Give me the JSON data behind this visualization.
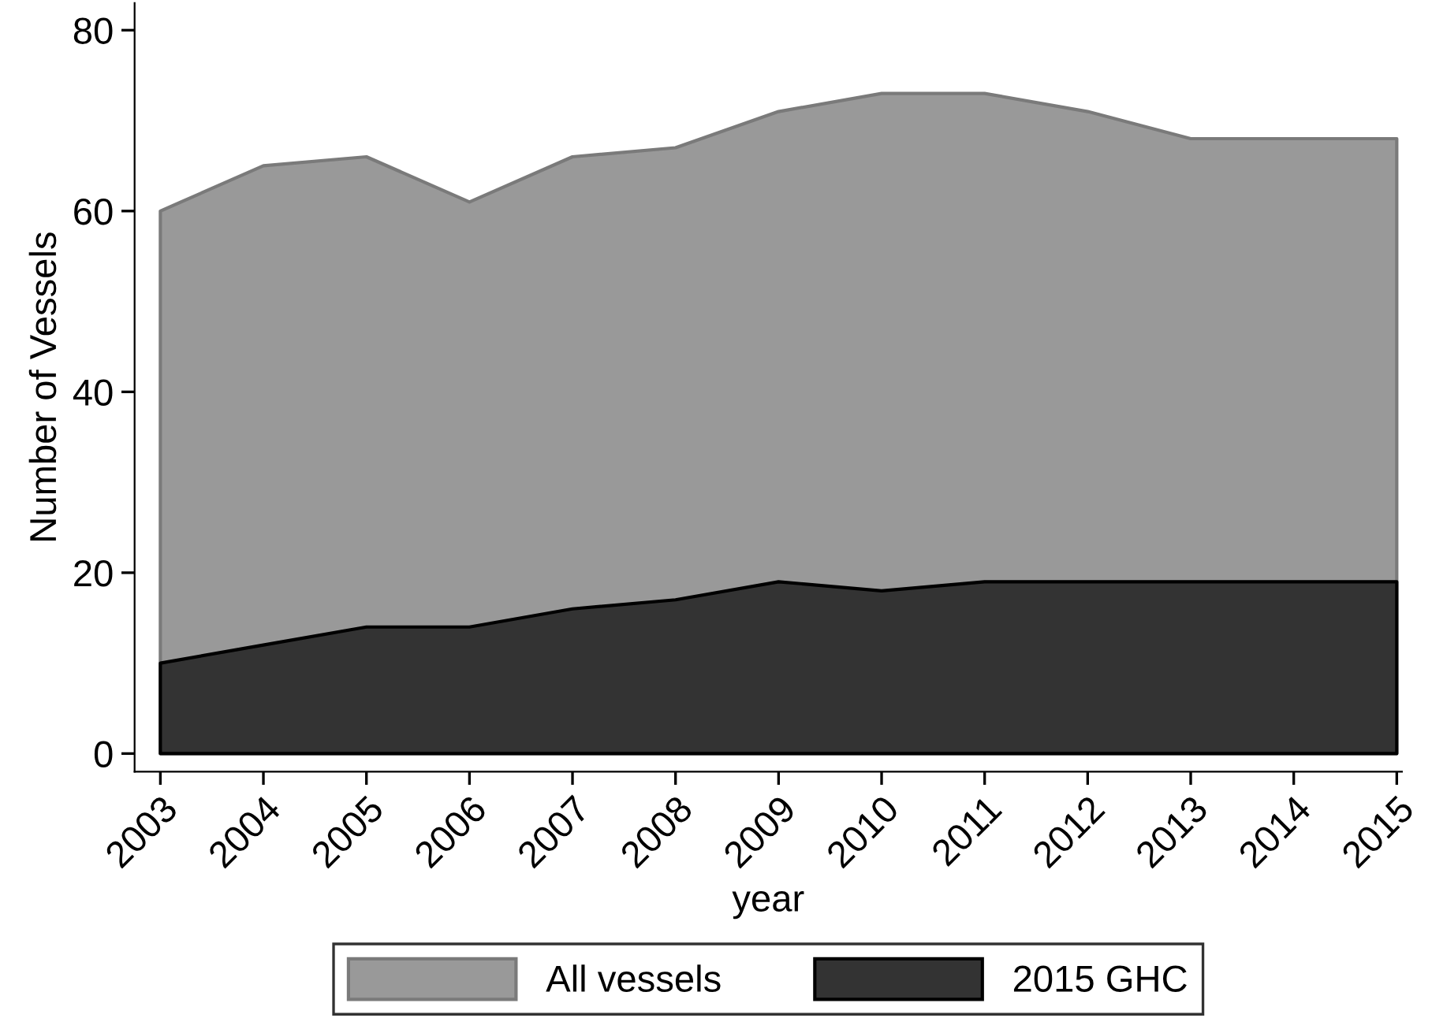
{
  "chart_data": {
    "type": "area",
    "xlabel": "year",
    "ylabel": "Number of Vessels",
    "x": [
      2003,
      2004,
      2005,
      2006,
      2007,
      2008,
      2009,
      2010,
      2011,
      2012,
      2013,
      2014,
      2015
    ],
    "series": [
      {
        "name": "All vessels",
        "color": "#999999",
        "values": [
          60,
          65,
          66,
          61,
          66,
          67,
          71,
          73,
          73,
          71,
          68,
          68,
          68
        ]
      },
      {
        "name": "2015 GHC",
        "color": "#333333",
        "values": [
          10,
          12,
          14,
          14,
          16,
          17,
          19,
          18,
          19,
          19,
          19,
          19,
          19
        ]
      }
    ],
    "xlim": [
      2002.75,
      2015.05
    ],
    "xticks": [
      2003,
      2004,
      2005,
      2006,
      2007,
      2008,
      2009,
      2010,
      2011,
      2012,
      2013,
      2014,
      2015
    ],
    "ylim": [
      -2,
      83
    ],
    "yticks": [
      0,
      20,
      40,
      60,
      80
    ],
    "grid": false,
    "legend": "bottom"
  }
}
